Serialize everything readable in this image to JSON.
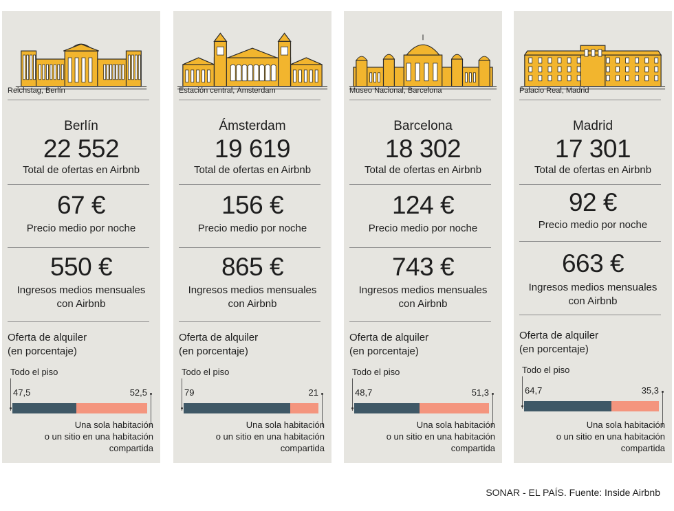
{
  "source": "SONAR - EL PAÍS. Fuente: Inside Airbnb",
  "labels": {
    "total": "Total de ofertas en Airbnb",
    "price": "Precio medio por noche",
    "income_line1": "Ingresos medios mensuales",
    "income_line2": "con Airbnb",
    "offer_line1": "Oferta de alquiler",
    "offer_line2": "(en porcentaje)",
    "whole": "Todo el piso",
    "room_line1": "Una sola habitación",
    "room_line2": "o un sitio en una habitación",
    "room_line3": "compartida"
  },
  "colors": {
    "card": "#e6e5e0",
    "whole": "#3f5866",
    "room": "#f4957e",
    "building": "#f2b52e"
  },
  "chart_data": {
    "type": "bar",
    "categories": [
      "Berlín",
      "Ámsterdam",
      "Barcelona",
      "Madrid"
    ],
    "series": [
      {
        "name": "Todo el piso",
        "values": [
          47.5,
          79,
          48.7,
          64.7
        ]
      },
      {
        "name": "Una sola habitación o un sitio en una habitación compartida",
        "values": [
          52.5,
          21,
          51.3,
          35.3
        ]
      }
    ],
    "ylim": [
      0,
      100
    ]
  },
  "cities": [
    {
      "name": "Berlín",
      "caption": "Reichstag, Berlín",
      "listings": "22 552",
      "price": "67 €",
      "income": "550 €",
      "whole_label": "47,5",
      "room_label": "52,5",
      "building_icon": "reichstag-icon"
    },
    {
      "name": "Ámsterdam",
      "caption": "Estación central, Ámsterdam",
      "listings": "19 619",
      "price": "156 €",
      "income": "865 €",
      "whole_label": "79",
      "room_label": "21",
      "building_icon": "centraal-station-icon"
    },
    {
      "name": "Barcelona",
      "caption": "Museo Nacional, Barcelona",
      "listings": "18 302",
      "price": "124 €",
      "income": "743 €",
      "whole_label": "48,7",
      "room_label": "51,3",
      "building_icon": "museu-nacional-icon"
    },
    {
      "name": "Madrid",
      "caption": "Palacio Real, Madrid",
      "listings": "17 301",
      "price": "92 €",
      "income": "663 €",
      "whole_label": "64,7",
      "room_label": "35,3",
      "building_icon": "palacio-real-icon"
    }
  ]
}
